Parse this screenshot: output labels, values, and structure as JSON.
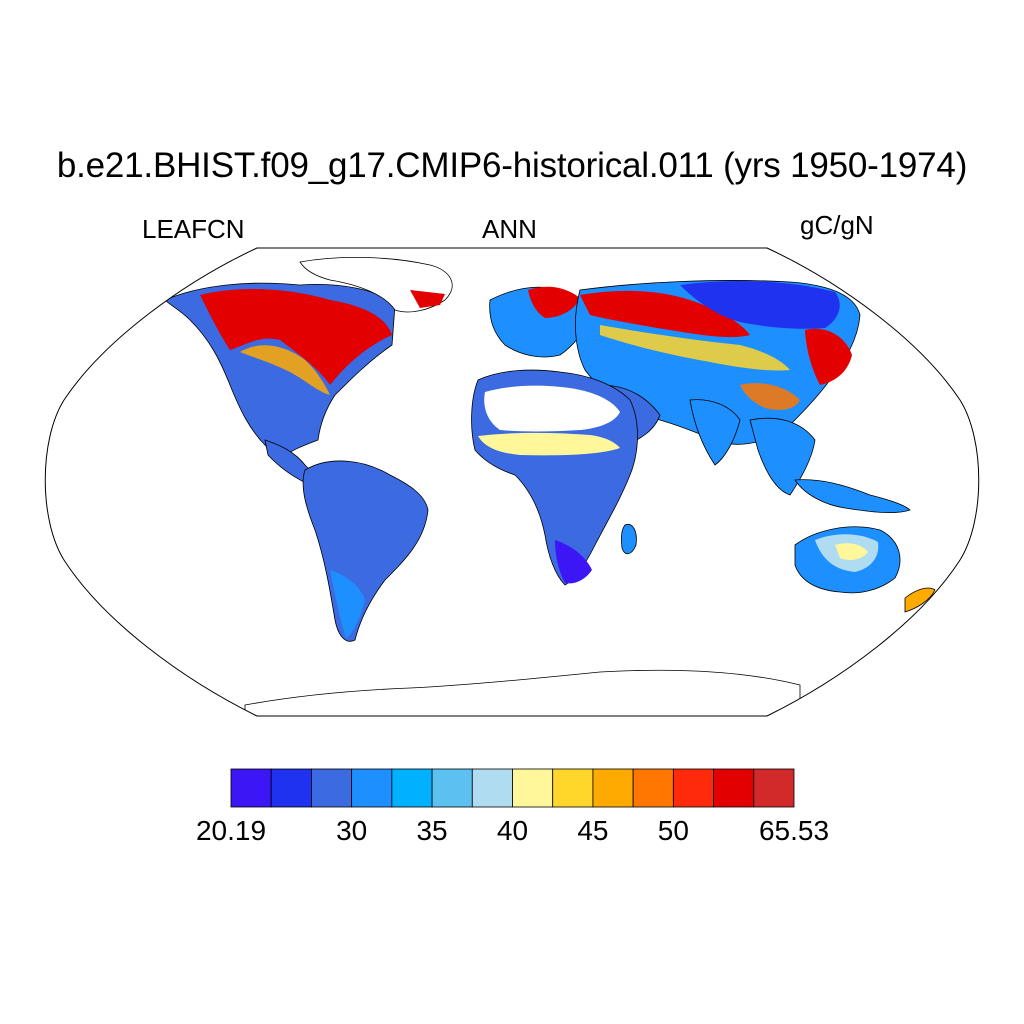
{
  "header": {
    "title": "b.e21.BHIST.f09_g17.CMIP6-historical.011 (yrs 1950-1974)",
    "variable": "LEAFCN",
    "season": "ANN",
    "units": "gC/gN"
  },
  "colorbar": {
    "colors": [
      "#3d16f5",
      "#1f32f0",
      "#3c6ae0",
      "#1e8fff",
      "#00b1ff",
      "#5cc1f1",
      "#b0dcf2",
      "#fff79a",
      "#ffd629",
      "#ffaa00",
      "#ff7700",
      "#ff2a0c",
      "#e30000",
      "#d22a2a"
    ],
    "labels": [
      {
        "text": "20.19",
        "edge": 0
      },
      {
        "text": "30",
        "edge": 3
      },
      {
        "text": "35",
        "edge": 5
      },
      {
        "text": "40",
        "edge": 7
      },
      {
        "text": "45",
        "edge": 9
      },
      {
        "text": "50",
        "edge": 11
      },
      {
        "text": "65.53",
        "edge": 14
      }
    ]
  },
  "regions": [
    {
      "name": "canada-boreal",
      "value": "high"
    },
    {
      "name": "siberia-boreal",
      "value": "high"
    },
    {
      "name": "eastern-siberia",
      "value": "low"
    },
    {
      "name": "sahel-band",
      "value": "mid"
    },
    {
      "name": "sahara",
      "value": "no-data"
    },
    {
      "name": "australia-interior",
      "value": "mid-low"
    },
    {
      "name": "amazon",
      "value": "low-mid"
    }
  ]
}
